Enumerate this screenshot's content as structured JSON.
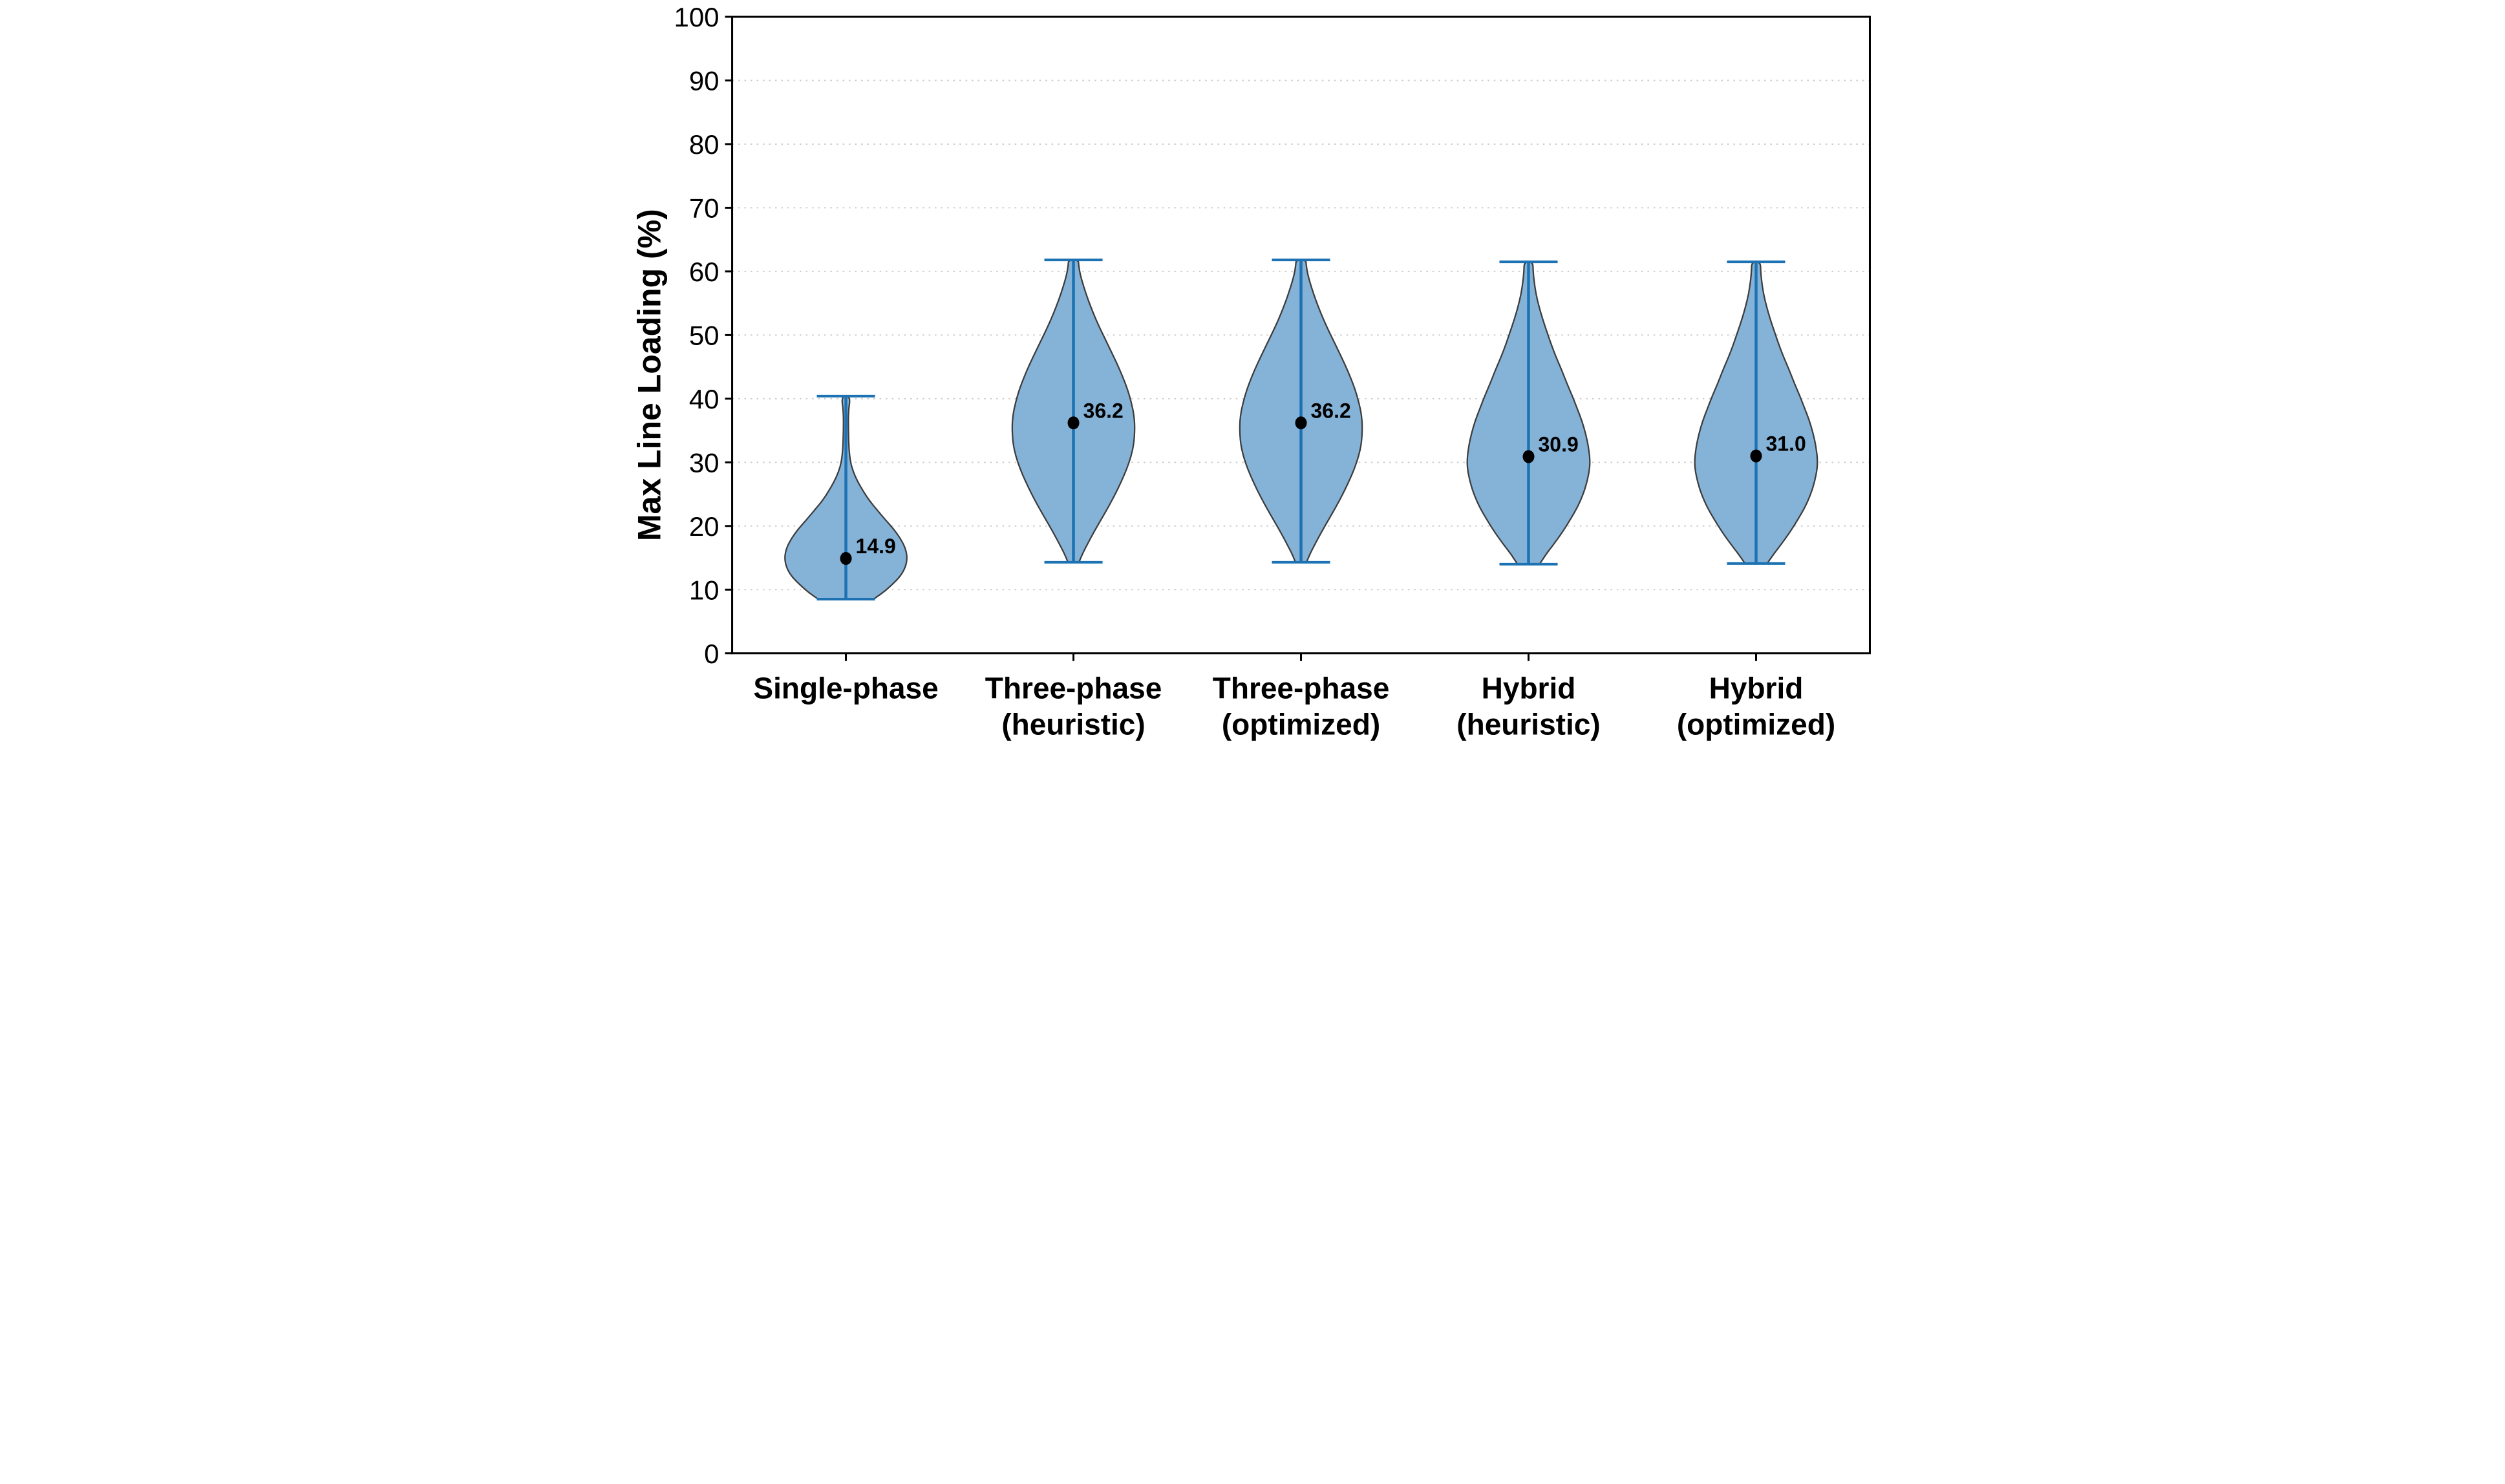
{
  "figure": {
    "background": "#ffffff",
    "ylabel": "Max Line Loading (%)"
  },
  "chart_data": {
    "type": "violin",
    "title": "",
    "xlabel": "",
    "ylabel": "Max Line Loading (%)",
    "ylim": [
      0,
      100
    ],
    "y_ticks": [
      0,
      10,
      20,
      30,
      40,
      50,
      60,
      70,
      80,
      90,
      100
    ],
    "grid": {
      "orientation": "horizontal",
      "style": "dotted",
      "at": [
        10,
        20,
        30,
        40,
        50,
        60,
        70,
        80,
        90
      ]
    },
    "legend": "none",
    "colors": {
      "violin_fill": "#85b2d7",
      "violin_edge": "#3c3c3c",
      "whisker": "#1c72b2",
      "median_dot": "#000000",
      "grid": "#cccccc",
      "axis": "#000000"
    },
    "categories": [
      {
        "label_lines": [
          "Single-phase"
        ],
        "median": 14.9,
        "median_label": "14.9",
        "whisker_min": 8.5,
        "whisker_max": 40.4,
        "profile": [
          [
            8.5,
            0.45
          ],
          [
            9.5,
            0.6
          ],
          [
            10.5,
            0.72
          ],
          [
            12,
            0.88
          ],
          [
            13.5,
            0.97
          ],
          [
            15,
            1.0
          ],
          [
            16.5,
            0.97
          ],
          [
            18,
            0.89
          ],
          [
            19.5,
            0.78
          ],
          [
            21,
            0.64
          ],
          [
            22.5,
            0.51
          ],
          [
            24,
            0.38
          ],
          [
            25.5,
            0.28
          ],
          [
            27,
            0.19
          ],
          [
            28.5,
            0.12
          ],
          [
            30,
            0.075
          ],
          [
            32,
            0.05
          ],
          [
            35,
            0.04
          ],
          [
            38,
            0.04
          ],
          [
            40.4,
            0.075
          ]
        ]
      },
      {
        "label_lines": [
          "Three-phase",
          "(heuristic)"
        ],
        "median": 36.2,
        "median_label": "36.2",
        "whisker_min": 14.3,
        "whisker_max": 61.8,
        "profile": [
          [
            14.3,
            0.09
          ],
          [
            15.5,
            0.14
          ],
          [
            17,
            0.22
          ],
          [
            19,
            0.33
          ],
          [
            21,
            0.45
          ],
          [
            23,
            0.57
          ],
          [
            25,
            0.68
          ],
          [
            27,
            0.78
          ],
          [
            29,
            0.87
          ],
          [
            31,
            0.94
          ],
          [
            33,
            0.985
          ],
          [
            35.5,
            1.0
          ],
          [
            37.5,
            0.985
          ],
          [
            39.5,
            0.94
          ],
          [
            41.5,
            0.88
          ],
          [
            43.5,
            0.8
          ],
          [
            45.5,
            0.71
          ],
          [
            47.5,
            0.61
          ],
          [
            49.5,
            0.51
          ],
          [
            51.5,
            0.41
          ],
          [
            53.5,
            0.32
          ],
          [
            55.5,
            0.24
          ],
          [
            57.5,
            0.17
          ],
          [
            59.5,
            0.11
          ],
          [
            61,
            0.085
          ],
          [
            61.8,
            0.08
          ]
        ]
      },
      {
        "label_lines": [
          "Three-phase",
          "(optimized)"
        ],
        "median": 36.2,
        "median_label": "36.2",
        "whisker_min": 14.3,
        "whisker_max": 61.8,
        "profile": [
          [
            14.3,
            0.09
          ],
          [
            15.5,
            0.14
          ],
          [
            17,
            0.22
          ],
          [
            19,
            0.33
          ],
          [
            21,
            0.45
          ],
          [
            23,
            0.57
          ],
          [
            25,
            0.68
          ],
          [
            27,
            0.78
          ],
          [
            29,
            0.87
          ],
          [
            31,
            0.94
          ],
          [
            33,
            0.985
          ],
          [
            35.5,
            1.0
          ],
          [
            37.5,
            0.985
          ],
          [
            39.5,
            0.94
          ],
          [
            41.5,
            0.88
          ],
          [
            43.5,
            0.8
          ],
          [
            45.5,
            0.71
          ],
          [
            47.5,
            0.61
          ],
          [
            49.5,
            0.51
          ],
          [
            51.5,
            0.41
          ],
          [
            53.5,
            0.32
          ],
          [
            55.5,
            0.24
          ],
          [
            57.5,
            0.17
          ],
          [
            59.5,
            0.11
          ],
          [
            61,
            0.085
          ],
          [
            61.8,
            0.08
          ]
        ]
      },
      {
        "label_lines": [
          "Hybrid",
          "(heuristic)"
        ],
        "median": 30.9,
        "median_label": "30.9",
        "whisker_min": 14.0,
        "whisker_max": 61.5,
        "profile": [
          [
            14.0,
            0.18
          ],
          [
            15.5,
            0.28
          ],
          [
            17,
            0.4
          ],
          [
            19,
            0.55
          ],
          [
            21,
            0.68
          ],
          [
            23,
            0.8
          ],
          [
            25,
            0.89
          ],
          [
            27,
            0.955
          ],
          [
            29,
            0.995
          ],
          [
            30.5,
            1.0
          ],
          [
            32.5,
            0.975
          ],
          [
            34.5,
            0.93
          ],
          [
            36.5,
            0.87
          ],
          [
            38.5,
            0.79
          ],
          [
            40.5,
            0.71
          ],
          [
            42.5,
            0.62
          ],
          [
            44.5,
            0.54
          ],
          [
            46.5,
            0.45
          ],
          [
            48.5,
            0.37
          ],
          [
            50.5,
            0.3
          ],
          [
            52.5,
            0.23
          ],
          [
            54.5,
            0.17
          ],
          [
            56.5,
            0.12
          ],
          [
            58.5,
            0.09
          ],
          [
            60,
            0.075
          ],
          [
            61.5,
            0.07
          ]
        ]
      },
      {
        "label_lines": [
          "Hybrid",
          "(optimized)"
        ],
        "median": 31.0,
        "median_label": "31.0",
        "whisker_min": 14.1,
        "whisker_max": 61.5,
        "profile": [
          [
            14.1,
            0.18
          ],
          [
            15.5,
            0.28
          ],
          [
            17,
            0.4
          ],
          [
            19,
            0.55
          ],
          [
            21,
            0.68
          ],
          [
            23,
            0.8
          ],
          [
            25,
            0.89
          ],
          [
            27,
            0.955
          ],
          [
            29,
            0.995
          ],
          [
            30.5,
            1.0
          ],
          [
            32.5,
            0.975
          ],
          [
            34.5,
            0.93
          ],
          [
            36.5,
            0.87
          ],
          [
            38.5,
            0.79
          ],
          [
            40.5,
            0.71
          ],
          [
            42.5,
            0.62
          ],
          [
            44.5,
            0.54
          ],
          [
            46.5,
            0.45
          ],
          [
            48.5,
            0.37
          ],
          [
            50.5,
            0.3
          ],
          [
            52.5,
            0.23
          ],
          [
            54.5,
            0.17
          ],
          [
            56.5,
            0.12
          ],
          [
            58.5,
            0.09
          ],
          [
            60,
            0.075
          ],
          [
            61.5,
            0.07
          ]
        ]
      }
    ]
  }
}
